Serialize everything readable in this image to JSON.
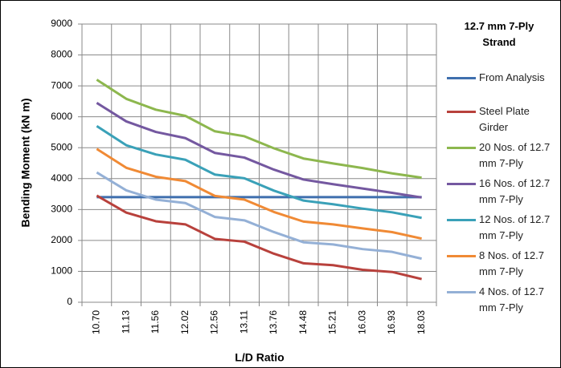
{
  "chart_data": {
    "type": "line",
    "y_label": "Bending Moment (kN m)",
    "x_label": "L/D Ratio",
    "legend_title": "12.7 mm  7-Ply Strand",
    "categories": [
      "10.70",
      "11.13",
      "11.56",
      "12.02",
      "12.56",
      "13.11",
      "13.76",
      "14.48",
      "15.21",
      "16.03",
      "16.93",
      "18.03"
    ],
    "ylim": [
      0,
      9000
    ],
    "yticks": [
      0,
      1000,
      2000,
      3000,
      4000,
      5000,
      6000,
      7000,
      8000,
      9000
    ],
    "grid": true,
    "legend": "right",
    "series": [
      {
        "name": "From Analysis",
        "color": "#3f6fae",
        "values": [
          3400,
          3400,
          3400,
          3400,
          3400,
          3400,
          3400,
          3400,
          3400,
          3400,
          3400,
          3400
        ]
      },
      {
        "name": "Steel Plate Girder",
        "color": "#b8413c",
        "values": [
          3450,
          2900,
          2620,
          2520,
          2050,
          1960,
          1570,
          1260,
          1200,
          1050,
          980,
          750
        ]
      },
      {
        "name": "20 Nos. of 12.7 mm 7-Ply",
        "color": "#8db74e",
        "values": [
          7200,
          6580,
          6230,
          6030,
          5530,
          5370,
          4980,
          4650,
          4490,
          4340,
          4170,
          4030
        ]
      },
      {
        "name": "16 Nos. of 12.7 mm 7-Ply",
        "color": "#7458a0",
        "values": [
          6450,
          5850,
          5510,
          5310,
          4830,
          4680,
          4290,
          3970,
          3820,
          3680,
          3540,
          3390
        ]
      },
      {
        "name": "12 Nos. of 12.7 mm 7-Ply",
        "color": "#3aa1b8",
        "values": [
          5700,
          5080,
          4780,
          4610,
          4130,
          4010,
          3610,
          3290,
          3170,
          3030,
          2910,
          2730
        ]
      },
      {
        "name": "8 Nos. of 12.7 mm 7-Ply",
        "color": "#f08a35",
        "values": [
          4960,
          4350,
          4060,
          3920,
          3440,
          3320,
          2920,
          2610,
          2520,
          2390,
          2270,
          2060
        ]
      },
      {
        "name": "4 Nos. of 12.7 mm 7-Ply",
        "color": "#94b0d6",
        "values": [
          4200,
          3620,
          3320,
          3210,
          2760,
          2650,
          2270,
          1940,
          1870,
          1720,
          1630,
          1410
        ]
      }
    ]
  }
}
